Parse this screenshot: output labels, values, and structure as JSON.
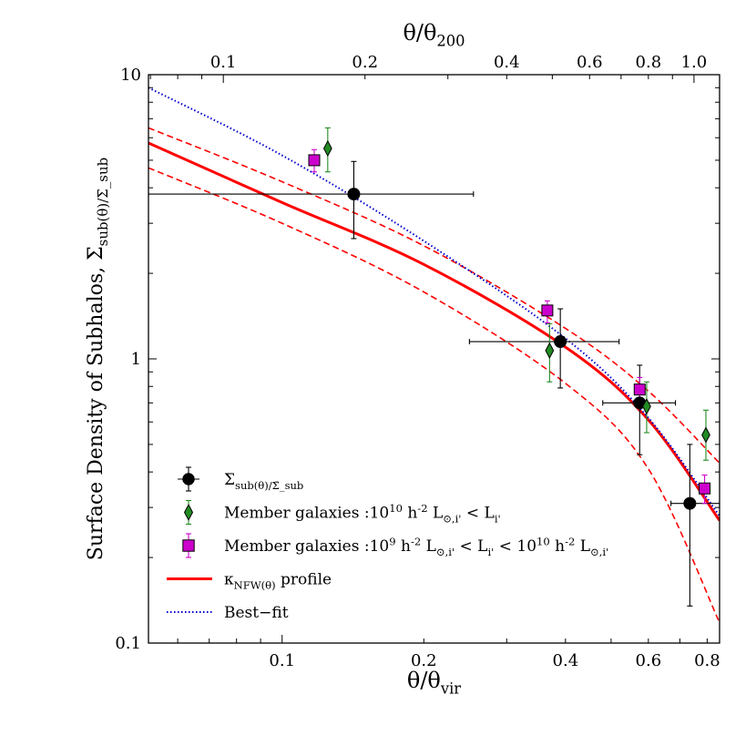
{
  "chart_data": {
    "type": "scatter",
    "xlabel": "θ/θ_vir",
    "x2label": "θ/θ_200",
    "ylabel": "Surface Density of Subhalos, Σ_sub(θ)/Σ̄_sub",
    "xscale": "log",
    "yscale": "log",
    "xlim": [
      0.052,
      0.85
    ],
    "ylim": [
      0.1,
      10
    ],
    "x2_to_x_factor": 0.75,
    "x_ticks": [
      0.1,
      0.2,
      0.4,
      0.6,
      0.8
    ],
    "x_tick_labels": [
      "0.1",
      "0.2",
      "0.4",
      "0.6",
      "0.8"
    ],
    "x2_ticks": [
      0.1,
      0.2,
      0.4,
      0.6,
      0.8,
      1.0
    ],
    "x2_tick_labels": [
      "0.1",
      "0.2",
      "0.4",
      "0.6",
      "0.8",
      "1.0"
    ],
    "y_ticks": [
      0.1,
      1,
      10
    ],
    "y_tick_labels": [
      "0.1",
      "1",
      "10"
    ],
    "series": [
      {
        "name": "Σ_sub(θ)/Σ̄_sub",
        "marker": "circle",
        "color": "#000000",
        "points": [
          {
            "x": 0.142,
            "y": 3.8,
            "xlo": 0.052,
            "xhi": 0.255,
            "ylo": 2.65,
            "yhi": 4.95
          },
          {
            "x": 0.39,
            "y": 1.15,
            "xlo": 0.25,
            "xhi": 0.52,
            "ylo": 0.79,
            "yhi": 1.5
          },
          {
            "x": 0.575,
            "y": 0.7,
            "xlo": 0.48,
            "xhi": 0.685,
            "ylo": 0.46,
            "yhi": 0.95
          },
          {
            "x": 0.735,
            "y": 0.31,
            "xlo": 0.67,
            "xhi": 0.85,
            "ylo": 0.135,
            "yhi": 0.5
          }
        ]
      },
      {
        "name": "Member galaxies :10^10 h^-2 L_⊙,i' < L_i'",
        "marker": "diamond",
        "color": "#228b22",
        "points": [
          {
            "x": 0.125,
            "y": 5.5,
            "ylo": 4.55,
            "yhi": 6.5
          },
          {
            "x": 0.37,
            "y": 1.07,
            "ylo": 0.83,
            "yhi": 1.33
          },
          {
            "x": 0.595,
            "y": 0.68,
            "ylo": 0.55,
            "yhi": 0.83
          },
          {
            "x": 0.795,
            "y": 0.54,
            "ylo": 0.44,
            "yhi": 0.66
          }
        ]
      },
      {
        "name": "Member galaxies :10^9 h^-2 L_⊙,i' < L_i' < 10^10 h^-2 L_⊙,i'",
        "marker": "square",
        "color": "#cc00cc",
        "points": [
          {
            "x": 0.117,
            "y": 5.0,
            "ylo": 4.55,
            "yhi": 5.45
          },
          {
            "x": 0.366,
            "y": 1.48,
            "ylo": 1.34,
            "yhi": 1.6
          },
          {
            "x": 0.575,
            "y": 0.78,
            "ylo": 0.7,
            "yhi": 0.86
          },
          {
            "x": 0.79,
            "y": 0.35,
            "ylo": 0.31,
            "yhi": 0.39
          }
        ]
      }
    ],
    "curves": [
      {
        "name": "κ_NFW(θ) profile",
        "style": "solid",
        "color": "#ff0000",
        "points": [
          [
            0.052,
            5.75
          ],
          [
            0.1,
            3.55
          ],
          [
            0.2,
            2.15
          ],
          [
            0.4,
            1.1
          ],
          [
            0.6,
            0.61
          ],
          [
            0.85,
            0.27
          ]
        ]
      },
      {
        "name": "κ_NFW upper bound",
        "style": "dashed",
        "color": "#ff0000",
        "points": [
          [
            0.052,
            6.5
          ],
          [
            0.1,
            4.2
          ],
          [
            0.2,
            2.5
          ],
          [
            0.4,
            1.28
          ],
          [
            0.6,
            0.77
          ],
          [
            0.85,
            0.43
          ]
        ]
      },
      {
        "name": "κ_NFW lower bound",
        "style": "dashed",
        "color": "#ff0000",
        "points": [
          [
            0.052,
            4.7
          ],
          [
            0.1,
            3.0
          ],
          [
            0.2,
            1.72
          ],
          [
            0.4,
            0.82
          ],
          [
            0.6,
            0.41
          ],
          [
            0.85,
            0.118
          ]
        ]
      },
      {
        "name": "Best−fit",
        "style": "dotted",
        "color": "#0000cc",
        "points": [
          [
            0.052,
            9.0
          ],
          [
            0.1,
            5.2
          ],
          [
            0.2,
            2.6
          ],
          [
            0.4,
            1.18
          ],
          [
            0.6,
            0.62
          ],
          [
            0.85,
            0.28
          ]
        ]
      }
    ],
    "legend": {
      "placement": "lower-left",
      "entries": [
        {
          "marker": "circle",
          "color": "#000000",
          "text": "Σ_sub(θ)/Σ̄_sub"
        },
        {
          "marker": "diamond",
          "color": "#228b22",
          "text": "Member galaxies :10^10 h^-2 L_⊙,i' < L_i'"
        },
        {
          "marker": "square",
          "color": "#cc00cc",
          "text": "Member galaxies :10^9 h^-2 L_⊙,i' < L_i' < 10^10 h^-2 L_⊙,i'"
        },
        {
          "line": "solid",
          "color": "#ff0000",
          "text": "κ_NFW(θ) profile"
        },
        {
          "line": "dotted",
          "color": "#0000cc",
          "text": "Best−fit"
        }
      ]
    }
  }
}
